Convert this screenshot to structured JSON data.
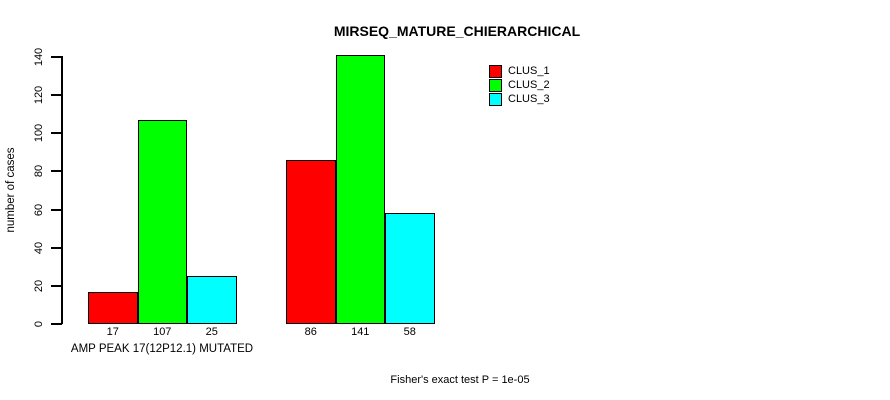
{
  "title": "MIRSEQ_MATURE_CHIERARCHICAL",
  "annotation": "Fisher's exact test P = 1e-05",
  "chart_data": {
    "type": "bar",
    "title": "MIRSEQ_MATURE_CHIERARCHICAL",
    "xlabel": "AMP PEAK 17(12P12.1) MUTATED",
    "ylabel": "number of cases",
    "categories": [
      "AMP PEAK 17(12P12.1) MUTATED",
      ""
    ],
    "series": [
      {
        "name": "CLUS_1",
        "color": "#ff0000",
        "values": [
          17,
          86
        ]
      },
      {
        "name": "CLUS_2",
        "color": "#00ff00",
        "values": [
          107,
          141
        ]
      },
      {
        "name": "CLUS_3",
        "color": "#00ffff",
        "values": [
          25,
          58
        ]
      }
    ],
    "bar_value_labels": [
      [
        17,
        107,
        25
      ],
      [
        86,
        141,
        58
      ]
    ],
    "yticks": [
      0,
      20,
      40,
      60,
      80,
      100,
      120,
      140
    ],
    "ylim": [
      0,
      140
    ],
    "grid": false,
    "legend_position": "top-right",
    "annotation": "Fisher's exact test P = 1e-05",
    "colors": {
      "background": "#ffffff",
      "axis": "#000000",
      "text": "#000000",
      "bar_border": "#000000"
    }
  }
}
